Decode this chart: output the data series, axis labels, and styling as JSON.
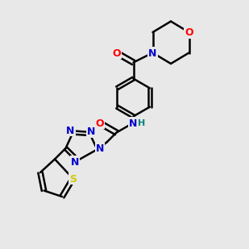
{
  "background_color": "#e8e8e8",
  "atom_colors": {
    "C": "#000000",
    "N": "#0000cc",
    "O": "#ff0000",
    "S": "#cccc00",
    "H": "#008080"
  },
  "bond_color": "#000000",
  "bond_width": 1.8,
  "font_size": 9,
  "xlim": [
    0.0,
    10.0
  ],
  "ylim": [
    0.0,
    10.0
  ]
}
